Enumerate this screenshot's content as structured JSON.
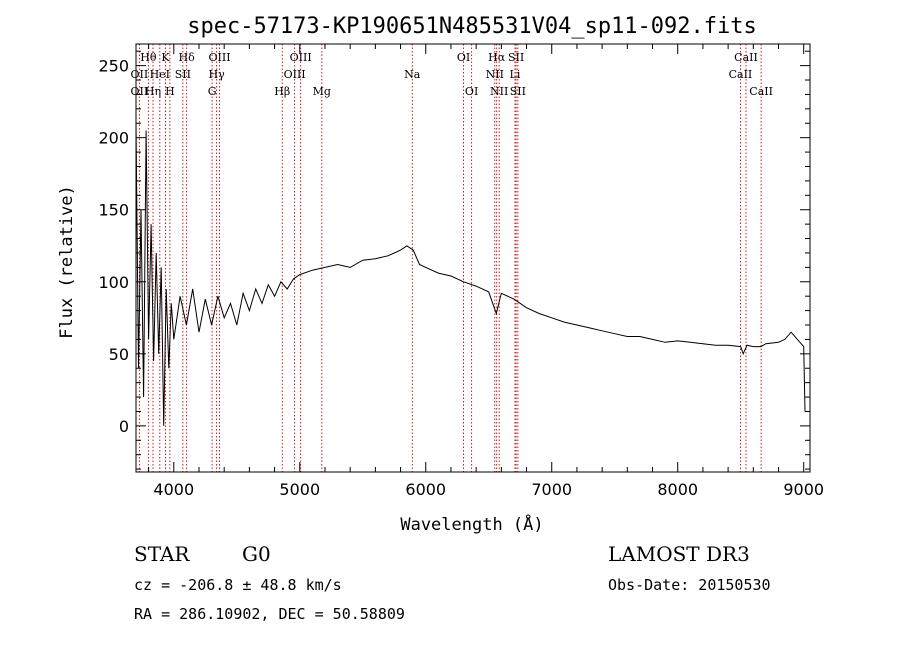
{
  "chart_data": {
    "type": "line",
    "title": "spec-57173-KP190651N485531V04_sp11-092.fits",
    "xlabel": "Wavelength (Å)",
    "ylabel": "Flux (relative)",
    "xlim": [
      3700,
      9050
    ],
    "ylim": [
      -32,
      265
    ],
    "xticks": [
      4000,
      5000,
      6000,
      7000,
      8000,
      9000
    ],
    "xtick_labels": [
      "4000",
      "5000",
      "6000",
      "7000",
      "8000",
      "9000"
    ],
    "yticks": [
      0,
      50,
      100,
      150,
      200,
      250
    ],
    "ytick_labels": [
      "0",
      "50",
      "100",
      "150",
      "200",
      "250"
    ],
    "grid": false,
    "series": [
      {
        "name": "spectrum",
        "x": [
          3700,
          3720,
          3740,
          3760,
          3780,
          3800,
          3820,
          3840,
          3860,
          3880,
          3900,
          3920,
          3940,
          3960,
          3980,
          4000,
          4050,
          4100,
          4150,
          4200,
          4250,
          4300,
          4350,
          4400,
          4450,
          4500,
          4550,
          4600,
          4650,
          4700,
          4750,
          4800,
          4850,
          4900,
          4950,
          5000,
          5100,
          5200,
          5300,
          5400,
          5500,
          5600,
          5700,
          5750,
          5800,
          5850,
          5900,
          5950,
          6000,
          6100,
          6200,
          6300,
          6400,
          6500,
          6560,
          6600,
          6700,
          6800,
          6900,
          7000,
          7100,
          7200,
          7300,
          7400,
          7500,
          7600,
          7700,
          7800,
          7900,
          8000,
          8100,
          8200,
          8300,
          8400,
          8500,
          8520,
          8550,
          8600,
          8660,
          8700,
          8800,
          8850,
          8900,
          8950,
          9000,
          9010
        ],
        "y": [
          210,
          40,
          150,
          20,
          205,
          60,
          140,
          45,
          120,
          50,
          110,
          0,
          95,
          40,
          85,
          60,
          90,
          70,
          95,
          65,
          88,
          70,
          90,
          75,
          85,
          70,
          92,
          80,
          95,
          85,
          98,
          90,
          100,
          95,
          102,
          105,
          108,
          110,
          112,
          110,
          115,
          116,
          118,
          120,
          122,
          125,
          122,
          112,
          110,
          106,
          104,
          100,
          97,
          93,
          78,
          92,
          88,
          82,
          78,
          75,
          72,
          70,
          68,
          66,
          64,
          62,
          62,
          60,
          58,
          59,
          58,
          57,
          56,
          56,
          55,
          50,
          56,
          55,
          55,
          57,
          58,
          60,
          65,
          60,
          55,
          10
        ]
      }
    ],
    "annotations": [
      {
        "label": "Hθ",
        "x": 3798,
        "row": 1
      },
      {
        "label": "K",
        "x": 3934,
        "row": 1
      },
      {
        "label": "Hδ",
        "x": 4102,
        "row": 1
      },
      {
        "label": "OIII",
        "x": 4363,
        "row": 1
      },
      {
        "label": "OIII",
        "x": 5007,
        "row": 1
      },
      {
        "label": "OI",
        "x": 6300,
        "row": 1
      },
      {
        "label": "Hα",
        "x": 6563,
        "row": 1
      },
      {
        "label": "SII",
        "x": 6717,
        "row": 1
      },
      {
        "label": "CaII",
        "x": 8542,
        "row": 1
      },
      {
        "label": "OII",
        "x": 3727,
        "row": 2
      },
      {
        "label": "HeI",
        "x": 3889,
        "row": 2
      },
      {
        "label": "SII",
        "x": 4072,
        "row": 2
      },
      {
        "label": "Hγ",
        "x": 4340,
        "row": 2
      },
      {
        "label": "OIII",
        "x": 4959,
        "row": 2
      },
      {
        "label": "Na",
        "x": 5893,
        "row": 2
      },
      {
        "label": "NII",
        "x": 6548,
        "row": 2
      },
      {
        "label": "Li",
        "x": 6708,
        "row": 2
      },
      {
        "label": "CaII",
        "x": 8498,
        "row": 2
      },
      {
        "label": "OII",
        "x": 3727,
        "row": 3
      },
      {
        "label": "Hη",
        "x": 3835,
        "row": 3
      },
      {
        "label": "H",
        "x": 3969,
        "row": 3
      },
      {
        "label": "G",
        "x": 4304,
        "row": 3
      },
      {
        "label": "Hβ",
        "x": 4861,
        "row": 3
      },
      {
        "label": "Mg",
        "x": 5175,
        "row": 3
      },
      {
        "label": "OI",
        "x": 6364,
        "row": 3
      },
      {
        "label": "NII",
        "x": 6583,
        "row": 3
      },
      {
        "label": "SII",
        "x": 6731,
        "row": 3
      },
      {
        "label": "CaII",
        "x": 8662,
        "row": 3
      }
    ],
    "line_markers": [
      3727,
      3798,
      3835,
      3889,
      3934,
      3969,
      4072,
      4102,
      4304,
      4340,
      4363,
      4861,
      4959,
      5007,
      5175,
      5893,
      6300,
      6364,
      6548,
      6563,
      6583,
      6708,
      6717,
      6731,
      8498,
      8542,
      8662
    ]
  },
  "footer": {
    "class_label": "STAR",
    "subclass_label": "G0",
    "survey": "LAMOST DR3",
    "cz": "cz = -206.8 ± 48.8 km/s",
    "obs_date": "Obs-Date: 20150530",
    "radec": "RA = 286.10902, DEC =  50.58809"
  },
  "colors": {
    "line_marker": "#cc0000",
    "spectrum": "#000000",
    "axes": "#000000"
  }
}
